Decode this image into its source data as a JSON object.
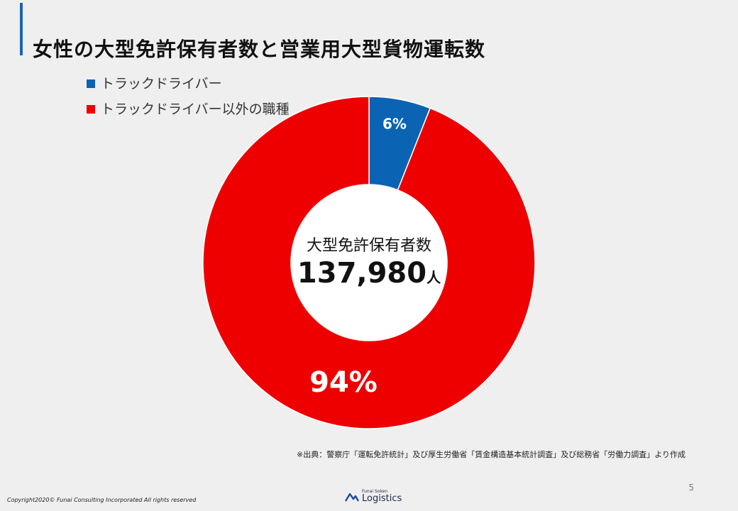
{
  "header": {
    "title": "女性の大型免許保有者数と営業用大型貨物運転数"
  },
  "chart_data": {
    "type": "pie",
    "categories": [
      "トラックドライバー",
      "トラックドライバー以外の職種"
    ],
    "values": [
      6,
      94
    ],
    "data_labels": [
      "6%",
      "94%"
    ],
    "colors": [
      "#0b63b4",
      "#ee0000"
    ],
    "donut": true,
    "center_label": "大型免許保有者数",
    "center_value": "137,980",
    "center_unit": "人",
    "legend_position": "top-left"
  },
  "footer": {
    "source": "※出典：警察庁「運転免許統計」及び厚生労働省「賃金構造基本統計調査」及び総務省「労働力調査」より作成",
    "page_number": "5",
    "copyright": "Copyright2020© Funai Consulting Incorporated All rights reserved",
    "logo_small": "Funai Soken",
    "logo_big": "Logistics"
  }
}
